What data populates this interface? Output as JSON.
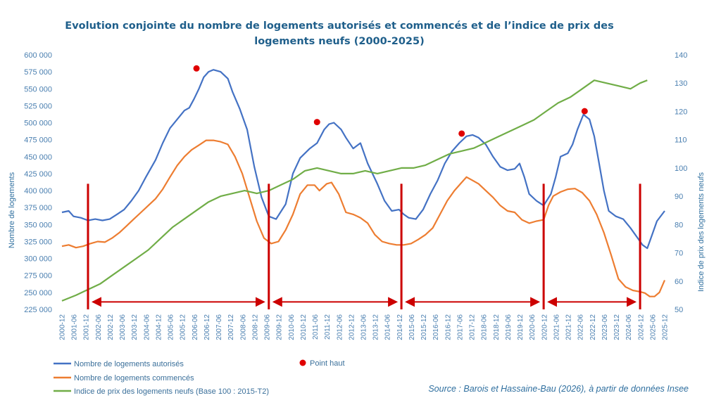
{
  "chart_data": {
    "type": "line",
    "title_lines": [
      "Evolution conjointe du nombre de logements autorisés et commencés et de l’indice de prix des",
      "logements neufs (2000-2025)"
    ],
    "ylabel_left": "Nombre de logements",
    "ylabel_right": "Indice de prix des logements neufs",
    "ylim_left": [
      225000,
      600000
    ],
    "ylim_right": [
      50,
      140
    ],
    "yticks_left": [
      "225 000",
      "250 000",
      "275 000",
      "300 000",
      "325 000",
      "350 000",
      "375 000",
      "400 000",
      "425 000",
      "450 000",
      "475 000",
      "500 000",
      "525 000",
      "550 000",
      "575 000",
      "600 000"
    ],
    "yticks_right": [
      "50",
      "60",
      "70",
      "80",
      "90",
      "100",
      "110",
      "120",
      "130",
      "140"
    ],
    "xrange_years": [
      2000.92,
      2025.92
    ],
    "x_ticks": [
      "2000-12",
      "2001-06",
      "2001-12",
      "2002-06",
      "2002-12",
      "2003-06",
      "2003-12",
      "2004-06",
      "2004-12",
      "2005-06",
      "2005-12",
      "2006-06",
      "2006-12",
      "2007-06",
      "2007-12",
      "2008-06",
      "2008-12",
      "2009-06",
      "2009-12",
      "2010-06",
      "2010-12",
      "2011-06",
      "2011-12",
      "2012-06",
      "2012-12",
      "2013-06",
      "2013-12",
      "2014-06",
      "2014-12",
      "2015-06",
      "2015-12",
      "2016-06",
      "2016-12",
      "2017-06",
      "2017-12",
      "2018-06",
      "2018-12",
      "2019-06",
      "2019-12",
      "2020-06",
      "2020-12",
      "2021-06",
      "2021-12",
      "2022-06",
      "2022-12",
      "2023-06",
      "2023-12",
      "2024-06",
      "2024-12",
      "2025-06",
      "2025-12"
    ],
    "series": [
      {
        "name": "Nombre de logements autorisés",
        "color": "#4472c4",
        "axis": "left",
        "x": [
          2000.92,
          2001.2,
          2001.4,
          2001.7,
          2002.0,
          2002.3,
          2002.6,
          2002.9,
          2003.2,
          2003.5,
          2003.8,
          2004.1,
          2004.4,
          2004.8,
          2005.1,
          2005.4,
          2005.7,
          2006.0,
          2006.2,
          2006.4,
          2006.6,
          2006.8,
          2007.0,
          2007.2,
          2007.5,
          2007.8,
          2008.0,
          2008.3,
          2008.6,
          2008.9,
          2009.2,
          2009.5,
          2009.8,
          2010.2,
          2010.5,
          2010.8,
          2011.2,
          2011.5,
          2011.8,
          2012.0,
          2012.2,
          2012.5,
          2012.7,
          2013.0,
          2013.3,
          2013.6,
          2014.0,
          2014.3,
          2014.6,
          2014.9,
          2015.1,
          2015.3,
          2015.6,
          2015.9,
          2016.2,
          2016.5,
          2016.8,
          2017.1,
          2017.4,
          2017.7,
          2017.95,
          2018.2,
          2018.5,
          2018.8,
          2019.1,
          2019.4,
          2019.7,
          2019.9,
          2020.1,
          2020.3,
          2020.6,
          2020.9,
          2021.2,
          2021.4,
          2021.6,
          2021.9,
          2022.1,
          2022.3,
          2022.55,
          2022.8,
          2023.0,
          2023.2,
          2023.4,
          2023.6,
          2023.9,
          2024.2,
          2024.5,
          2024.8,
          2025.0,
          2025.2,
          2025.4,
          2025.6,
          2025.92
        ],
        "values": [
          368000,
          370000,
          362000,
          360000,
          356000,
          358000,
          356000,
          358000,
          365000,
          372000,
          385000,
          400000,
          420000,
          445000,
          470000,
          492000,
          505000,
          518000,
          522000,
          535000,
          550000,
          567000,
          575000,
          578000,
          575000,
          565000,
          545000,
          520000,
          490000,
          435000,
          390000,
          362000,
          358000,
          380000,
          425000,
          448000,
          462000,
          470000,
          490000,
          498000,
          500000,
          490000,
          478000,
          462000,
          470000,
          440000,
          410000,
          385000,
          370000,
          372000,
          365000,
          360000,
          358000,
          372000,
          395000,
          415000,
          440000,
          458000,
          470000,
          480000,
          482000,
          478000,
          468000,
          450000,
          435000,
          430000,
          432000,
          440000,
          420000,
          395000,
          385000,
          378000,
          395000,
          420000,
          450000,
          455000,
          468000,
          490000,
          512000,
          505000,
          480000,
          440000,
          400000,
          370000,
          362000,
          358000,
          345000,
          330000,
          320000,
          315000,
          335000,
          355000,
          370000
        ]
      },
      {
        "name": "Nombre de logements commencés",
        "color": "#ed7d31",
        "axis": "left",
        "x": [
          2000.92,
          2001.2,
          2001.5,
          2001.8,
          2002.1,
          2002.4,
          2002.7,
          2003.0,
          2003.3,
          2003.6,
          2003.9,
          2004.2,
          2004.5,
          2004.8,
          2005.1,
          2005.4,
          2005.7,
          2006.0,
          2006.3,
          2006.6,
          2006.9,
          2007.2,
          2007.5,
          2007.8,
          2008.1,
          2008.4,
          2008.7,
          2009.0,
          2009.3,
          2009.6,
          2009.9,
          2010.2,
          2010.5,
          2010.8,
          2011.1,
          2011.4,
          2011.6,
          2011.9,
          2012.1,
          2012.4,
          2012.7,
          2013.0,
          2013.3,
          2013.6,
          2013.9,
          2014.2,
          2014.5,
          2014.8,
          2015.1,
          2015.4,
          2015.7,
          2016.0,
          2016.3,
          2016.6,
          2016.9,
          2017.2,
          2017.45,
          2017.7,
          2017.95,
          2018.2,
          2018.5,
          2018.8,
          2019.1,
          2019.4,
          2019.7,
          2020.0,
          2020.3,
          2020.6,
          2020.9,
          2021.1,
          2021.3,
          2021.6,
          2021.9,
          2022.2,
          2022.5,
          2022.8,
          2023.1,
          2023.4,
          2023.7,
          2024.0,
          2024.3,
          2024.6,
          2024.9,
          2025.1,
          2025.3,
          2025.5,
          2025.7,
          2025.92
        ],
        "values": [
          318000,
          320000,
          316000,
          318000,
          322000,
          325000,
          324000,
          330000,
          338000,
          348000,
          358000,
          368000,
          378000,
          388000,
          402000,
          420000,
          437000,
          450000,
          460000,
          467000,
          474000,
          474000,
          472000,
          468000,
          450000,
          425000,
          390000,
          355000,
          330000,
          322000,
          325000,
          342000,
          365000,
          395000,
          408000,
          408000,
          400000,
          410000,
          412000,
          395000,
          368000,
          365000,
          360000,
          352000,
          335000,
          325000,
          322000,
          320000,
          320000,
          322000,
          328000,
          335000,
          345000,
          365000,
          385000,
          400000,
          410000,
          420000,
          415000,
          410000,
          400000,
          390000,
          378000,
          370000,
          368000,
          357000,
          352000,
          355000,
          357000,
          378000,
          392000,
          398000,
          402000,
          403000,
          397000,
          385000,
          365000,
          338000,
          305000,
          270000,
          258000,
          253000,
          251000,
          249000,
          244000,
          244000,
          250000,
          268000
        ]
      },
      {
        "name": "Indice de prix des logements neufs (Base 100 : 2015-T2)",
        "color": "#70ad47",
        "axis": "right",
        "x": [
          2000.92,
          2001.5,
          2002.0,
          2002.5,
          2003.0,
          2003.5,
          2004.0,
          2004.5,
          2005.0,
          2005.5,
          2006.0,
          2006.5,
          2007.0,
          2007.5,
          2008.0,
          2008.5,
          2009.0,
          2009.5,
          2010.0,
          2010.5,
          2011.0,
          2011.5,
          2012.0,
          2012.5,
          2013.0,
          2013.5,
          2014.0,
          2014.5,
          2015.0,
          2015.5,
          2016.0,
          2016.5,
          2017.0,
          2017.5,
          2018.0,
          2018.5,
          2019.0,
          2019.5,
          2020.0,
          2020.5,
          2021.0,
          2021.5,
          2022.0,
          2022.5,
          2023.0,
          2023.5,
          2024.0,
          2024.5,
          2024.9,
          2025.2
        ],
        "values": [
          53,
          55,
          57,
          59,
          62,
          65,
          68,
          71,
          75,
          79,
          82,
          85,
          88,
          90,
          91,
          92,
          91,
          92,
          94,
          96,
          99,
          100,
          99,
          98,
          98,
          99,
          98,
          99,
          100,
          100,
          101,
          103,
          105,
          106,
          107,
          109,
          111,
          113,
          115,
          117,
          120,
          123,
          125,
          128,
          131,
          130,
          129,
          128,
          130,
          131
        ]
      }
    ],
    "peaks": {
      "label": "Point haut",
      "color": "#e00000",
      "points": [
        {
          "x": 2006.5,
          "y": 580000
        },
        {
          "x": 2011.5,
          "y": 501000
        },
        {
          "x": 2017.5,
          "y": 484000
        },
        {
          "x": 2022.6,
          "y": 517000
        }
      ]
    },
    "period_markers": {
      "color": "#cc0000",
      "vlines_x": [
        2002.0,
        2009.5,
        2015.0,
        2020.9,
        2024.9
      ],
      "arrows": [
        {
          "from": 2002.0,
          "to": 2009.5
        },
        {
          "from": 2009.5,
          "to": 2015.0
        },
        {
          "from": 2015.0,
          "to": 2020.9
        },
        {
          "from": 2020.9,
          "to": 2024.9
        }
      ],
      "vline_top_y": 410000,
      "arrow_y": 236000
    },
    "source": "Source : Barois et Hassaine-Bau (2026), à partir de données Insee"
  }
}
